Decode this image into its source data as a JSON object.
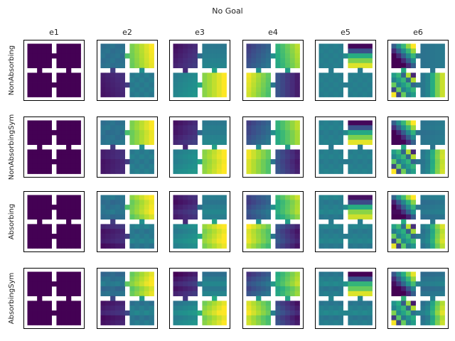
{
  "title": "No Goal",
  "chart_data": {
    "type": "heatmap",
    "title": "No Goal",
    "columns": [
      "e1",
      "e2",
      "e3",
      "e4",
      "e5",
      "e6"
    ],
    "rows": [
      "NonAbsorbing",
      "NonAbsorbingSym",
      "Absorbing",
      "AbsorbingSym"
    ],
    "grid_size": 11,
    "environment": "four-rooms gridworld",
    "colormap": "viridis",
    "wall_color": "#ffffff",
    "doorways": [
      "top",
      "left",
      "right",
      "bottom"
    ]
  }
}
